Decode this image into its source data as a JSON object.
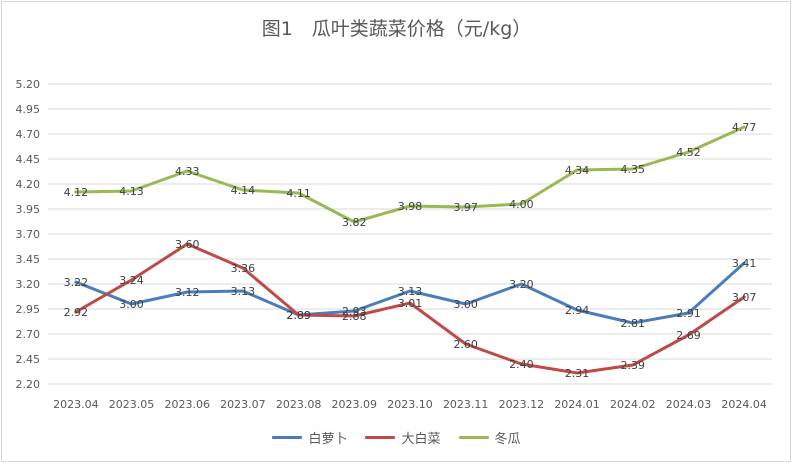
{
  "chart_data": {
    "type": "line",
    "title": "图1　瓜叶类蔬菜价格（元/kg）",
    "categories": [
      "2023.04",
      "2023.05",
      "2023.06",
      "2023.07",
      "2023.08",
      "2023.09",
      "2023.10",
      "2023.11",
      "2023.12",
      "2024.01",
      "2024.02",
      "2024.03",
      "2024.04"
    ],
    "y_ticks": [
      "2.20",
      "2.45",
      "2.70",
      "2.95",
      "3.20",
      "3.45",
      "3.70",
      "3.95",
      "4.20",
      "4.45",
      "4.70",
      "4.95",
      "5.20"
    ],
    "ylim": [
      2.2,
      5.2
    ],
    "grid": true,
    "legend_position": "bottom",
    "series": [
      {
        "name": "白萝卜",
        "color": "#4a7ebb",
        "values": [
          3.22,
          3.0,
          3.12,
          3.13,
          2.89,
          2.93,
          3.13,
          3.0,
          3.2,
          2.94,
          2.81,
          2.91,
          3.41
        ],
        "labels": [
          "3.22",
          "3.00",
          "3.12",
          "3.13",
          "2.89",
          "2.93",
          "3.13",
          "3.00",
          "3.20",
          "2.94",
          "2.81",
          "2.91",
          "3.41"
        ]
      },
      {
        "name": "大白菜",
        "color": "#be4b48",
        "values": [
          2.92,
          3.24,
          3.6,
          3.36,
          2.89,
          2.88,
          3.01,
          2.6,
          2.4,
          2.31,
          2.39,
          2.69,
          3.07
        ],
        "labels": [
          "2.92",
          "3.24",
          "3.60",
          "3.36",
          "2.89",
          "2.88",
          "3.01",
          "2.60",
          "2.40",
          "2.31",
          "2.39",
          "2.69",
          "3.07"
        ]
      },
      {
        "name": "冬瓜",
        "color": "#98b954",
        "values": [
          4.12,
          4.13,
          4.33,
          4.14,
          4.11,
          3.82,
          3.98,
          3.97,
          4.0,
          4.34,
          4.35,
          4.52,
          4.77
        ],
        "labels": [
          "4.12",
          "4.13",
          "4.33",
          "4.14",
          "4.11",
          "3.82",
          "3.98",
          "3.97",
          "4.00",
          "4.34",
          "4.35",
          "4.52",
          "4.77"
        ]
      }
    ]
  }
}
